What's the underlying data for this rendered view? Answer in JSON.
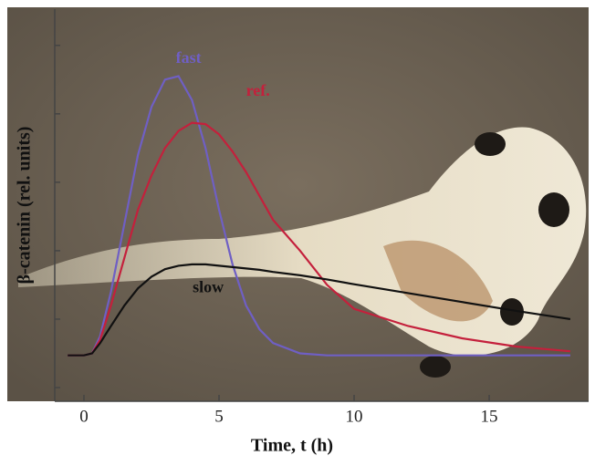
{
  "chart_data": {
    "type": "line",
    "xlabel": "Time, t (h)",
    "ylabel": "β-catenin (rel. units)",
    "x": [
      -0.6,
      0,
      0.3,
      0.6,
      1,
      1.5,
      2,
      2.5,
      3,
      3.5,
      4,
      4.5,
      5,
      5.5,
      6,
      6.5,
      7,
      8,
      9,
      10,
      12,
      14,
      16,
      18
    ],
    "series": [
      {
        "name": "fast",
        "color": "#6f5fc4",
        "values": [
          0.47,
          0.47,
          0.5,
          0.75,
          1.4,
          2.4,
          3.4,
          4.1,
          4.5,
          4.55,
          4.2,
          3.5,
          2.6,
          1.8,
          1.2,
          0.85,
          0.65,
          0.5,
          0.47,
          0.47,
          0.47,
          0.47,
          0.47,
          0.47
        ]
      },
      {
        "name": "ref.",
        "color": "#c4203c",
        "values": [
          0.47,
          0.47,
          0.5,
          0.7,
          1.2,
          1.9,
          2.6,
          3.1,
          3.5,
          3.75,
          3.87,
          3.85,
          3.7,
          3.45,
          3.15,
          2.8,
          2.45,
          2.0,
          1.5,
          1.15,
          0.9,
          0.72,
          0.6,
          0.53
        ]
      },
      {
        "name": "slow",
        "color": "#111111",
        "values": [
          0.47,
          0.47,
          0.5,
          0.65,
          0.9,
          1.2,
          1.45,
          1.62,
          1.73,
          1.78,
          1.8,
          1.8,
          1.78,
          1.76,
          1.74,
          1.72,
          1.69,
          1.64,
          1.58,
          1.51,
          1.38,
          1.25,
          1.12,
          1.0
        ]
      }
    ],
    "xlim": [
      -1.08,
      18.68
    ],
    "xticks": [
      0,
      5,
      10,
      15
    ],
    "ylim": [
      -0.2,
      5.53
    ],
    "yticks": [
      0,
      1,
      2,
      3,
      4,
      5
    ]
  }
}
